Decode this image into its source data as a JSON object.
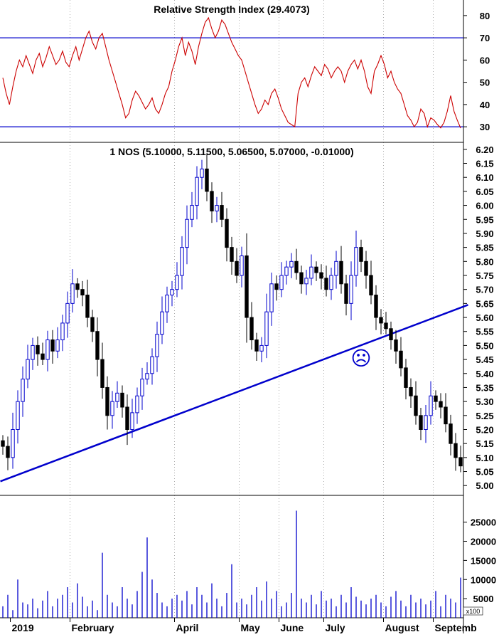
{
  "chart_data": [
    {
      "panel": "rsi",
      "type": "line",
      "title": "Relative Strength Index (29.4073)",
      "ylim": [
        23,
        87
      ],
      "yticks": [
        30,
        40,
        50,
        60,
        70,
        80
      ],
      "reference_lines": [
        30,
        70
      ],
      "colors": {
        "line": "#cc0000",
        "reference": "#0000cc"
      },
      "values": [
        52,
        45,
        40,
        48,
        55,
        60,
        57,
        62,
        58,
        54,
        60,
        63,
        57,
        61,
        66,
        62,
        58,
        60,
        64,
        59,
        57,
        62,
        66,
        60,
        65,
        70,
        73,
        68,
        65,
        70,
        72,
        66,
        60,
        55,
        50,
        45,
        40,
        34,
        36,
        42,
        46,
        44,
        41,
        38,
        40,
        43,
        38,
        36,
        40,
        45,
        48,
        55,
        60,
        66,
        70,
        62,
        68,
        64,
        58,
        66,
        72,
        77,
        79,
        74,
        70,
        73,
        78,
        76,
        72,
        68,
        65,
        62,
        60,
        55,
        50,
        45,
        40,
        36,
        38,
        42,
        40,
        45,
        47,
        43,
        38,
        35,
        32,
        31,
        30,
        45,
        50,
        52,
        48,
        53,
        57,
        55,
        53,
        58,
        56,
        52,
        55,
        57,
        55,
        50,
        55,
        58,
        60,
        56,
        60,
        55,
        48,
        45,
        55,
        58,
        62,
        58,
        52,
        55,
        50,
        47,
        45,
        40,
        35,
        33,
        30,
        32,
        38,
        36,
        30,
        34,
        33,
        31,
        29.5,
        32,
        37,
        44,
        37,
        33,
        29.4
      ]
    },
    {
      "panel": "price",
      "type": "candlestick",
      "title": "1 NOS (5.10000, 5.11500, 5.06500, 5.07000, -0.01000)",
      "ylim": [
        4.965,
        6.225
      ],
      "yticks": [
        5.0,
        5.05,
        5.1,
        5.15,
        5.2,
        5.25,
        5.3,
        5.35,
        5.4,
        5.45,
        5.5,
        5.55,
        5.6,
        5.65,
        5.7,
        5.75,
        5.8,
        5.85,
        5.9,
        5.95,
        6.0,
        6.05,
        6.1,
        6.15,
        6.2
      ],
      "colors": {
        "up": "#0000cc",
        "down": "#000000",
        "trendline": "#0000cc",
        "annotation": "#0000cc"
      },
      "x_label_slots": [
        2,
        14,
        35,
        48,
        56,
        65,
        77,
        87
      ],
      "closes": [
        5.14,
        5.1,
        5.2,
        5.3,
        5.38,
        5.45,
        5.5,
        5.47,
        5.45,
        5.52,
        5.48,
        5.52,
        5.58,
        5.65,
        5.72,
        5.7,
        5.68,
        5.6,
        5.55,
        5.45,
        5.35,
        5.25,
        5.3,
        5.33,
        5.28,
        5.2,
        5.26,
        5.32,
        5.38,
        5.4,
        5.46,
        5.54,
        5.62,
        5.68,
        5.7,
        5.75,
        5.85,
        5.95,
        6.0,
        6.1,
        6.13,
        6.05,
        5.98,
        6.0,
        5.95,
        5.85,
        5.8,
        5.75,
        5.82,
        5.6,
        5.52,
        5.48,
        5.5,
        5.62,
        5.72,
        5.7,
        5.75,
        5.78,
        5.8,
        5.76,
        5.72,
        5.74,
        5.78,
        5.76,
        5.74,
        5.7,
        5.75,
        5.8,
        5.72,
        5.65,
        5.75,
        5.85,
        5.8,
        5.75,
        5.68,
        5.6,
        5.58,
        5.56,
        5.52,
        5.48,
        5.42,
        5.35,
        5.32,
        5.25,
        5.2,
        5.25,
        5.32,
        5.3,
        5.28,
        5.22,
        5.15,
        5.1,
        5.07
      ],
      "trendline": {
        "from": {
          "slot": -0.5,
          "value": 5.015
        },
        "to": {
          "slot": 93.5,
          "value": 5.645
        }
      },
      "annotation": {
        "slot": 72,
        "value": 5.455,
        "symbol": "☹"
      }
    },
    {
      "panel": "volume",
      "type": "bar",
      "axis_unit": "x100",
      "ylim": [
        0,
        32000
      ],
      "yticks": [
        5000,
        10000,
        15000,
        20000,
        25000
      ],
      "colors": {
        "bar": "#0000cc"
      },
      "values": [
        3000,
        6000,
        2000,
        10000,
        4000,
        3500,
        5000,
        2500,
        4500,
        7000,
        3000,
        5000,
        6000,
        8000,
        4000,
        9000,
        5500,
        3000,
        4500,
        2000,
        17000,
        6000,
        4000,
        3000,
        8000,
        5000,
        3500,
        7000,
        12000,
        21000,
        10000,
        6500,
        4000,
        3000,
        5000,
        6000,
        4500,
        7000,
        3500,
        8000,
        6000,
        4000,
        9000,
        5000,
        3000,
        6500,
        14000,
        4000,
        5000,
        3500,
        6000,
        8000,
        4500,
        9500,
        5000,
        7000,
        3000,
        4000,
        6500,
        28000,
        5000,
        4000,
        6000,
        3500,
        7000,
        4500,
        5000,
        3000,
        6000,
        4000,
        8000,
        5500,
        4500,
        3500,
        5000,
        6000,
        4000,
        3000,
        5500,
        7000,
        4500,
        3000,
        6000,
        4000,
        5000,
        3500,
        4500,
        7000,
        3000,
        6000,
        5000,
        4000,
        10500
      ],
      "month_labels": [
        "2019",
        "February",
        "April",
        "May",
        "June",
        "July",
        "August",
        "Septemb"
      ]
    }
  ]
}
